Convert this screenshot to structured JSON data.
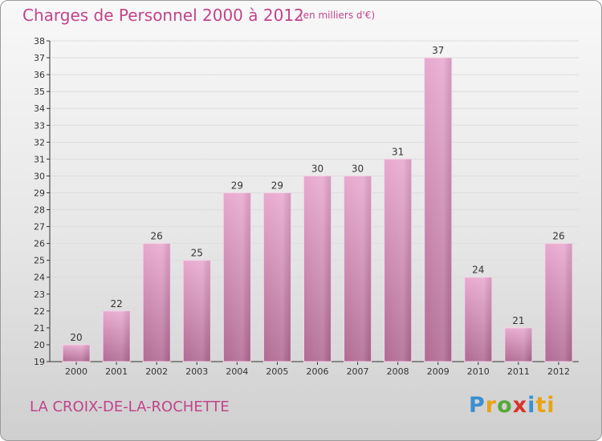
{
  "header": {
    "title": "Charges de Personnel 2000 à 2012",
    "subtitle": "(en milliers d'€)"
  },
  "footer": {
    "commune": "LA CROIX-DE-LA-ROCHETTE",
    "logo_text": "Proxiti",
    "logo_letters": [
      "P",
      "r",
      "o",
      "x",
      "i",
      "ti"
    ]
  },
  "colors": {
    "title": "#c0448b",
    "bar_top": "#e8a9cf",
    "bar_bottom": "#b06a93",
    "axis": "#333333",
    "grid": "#dddddd"
  },
  "chart_data": {
    "type": "bar",
    "categories": [
      "2000",
      "2001",
      "2002",
      "2003",
      "2004",
      "2005",
      "2006",
      "2007",
      "2008",
      "2009",
      "2010",
      "2011",
      "2012"
    ],
    "values": [
      20,
      22,
      26,
      25,
      29,
      29,
      30,
      30,
      31,
      37,
      24,
      21,
      26
    ],
    "ylim": [
      19,
      38
    ],
    "yticks": [
      19,
      20,
      21,
      22,
      23,
      24,
      25,
      26,
      27,
      28,
      29,
      30,
      31,
      32,
      33,
      34,
      35,
      36,
      37,
      38
    ],
    "grid": true
  }
}
